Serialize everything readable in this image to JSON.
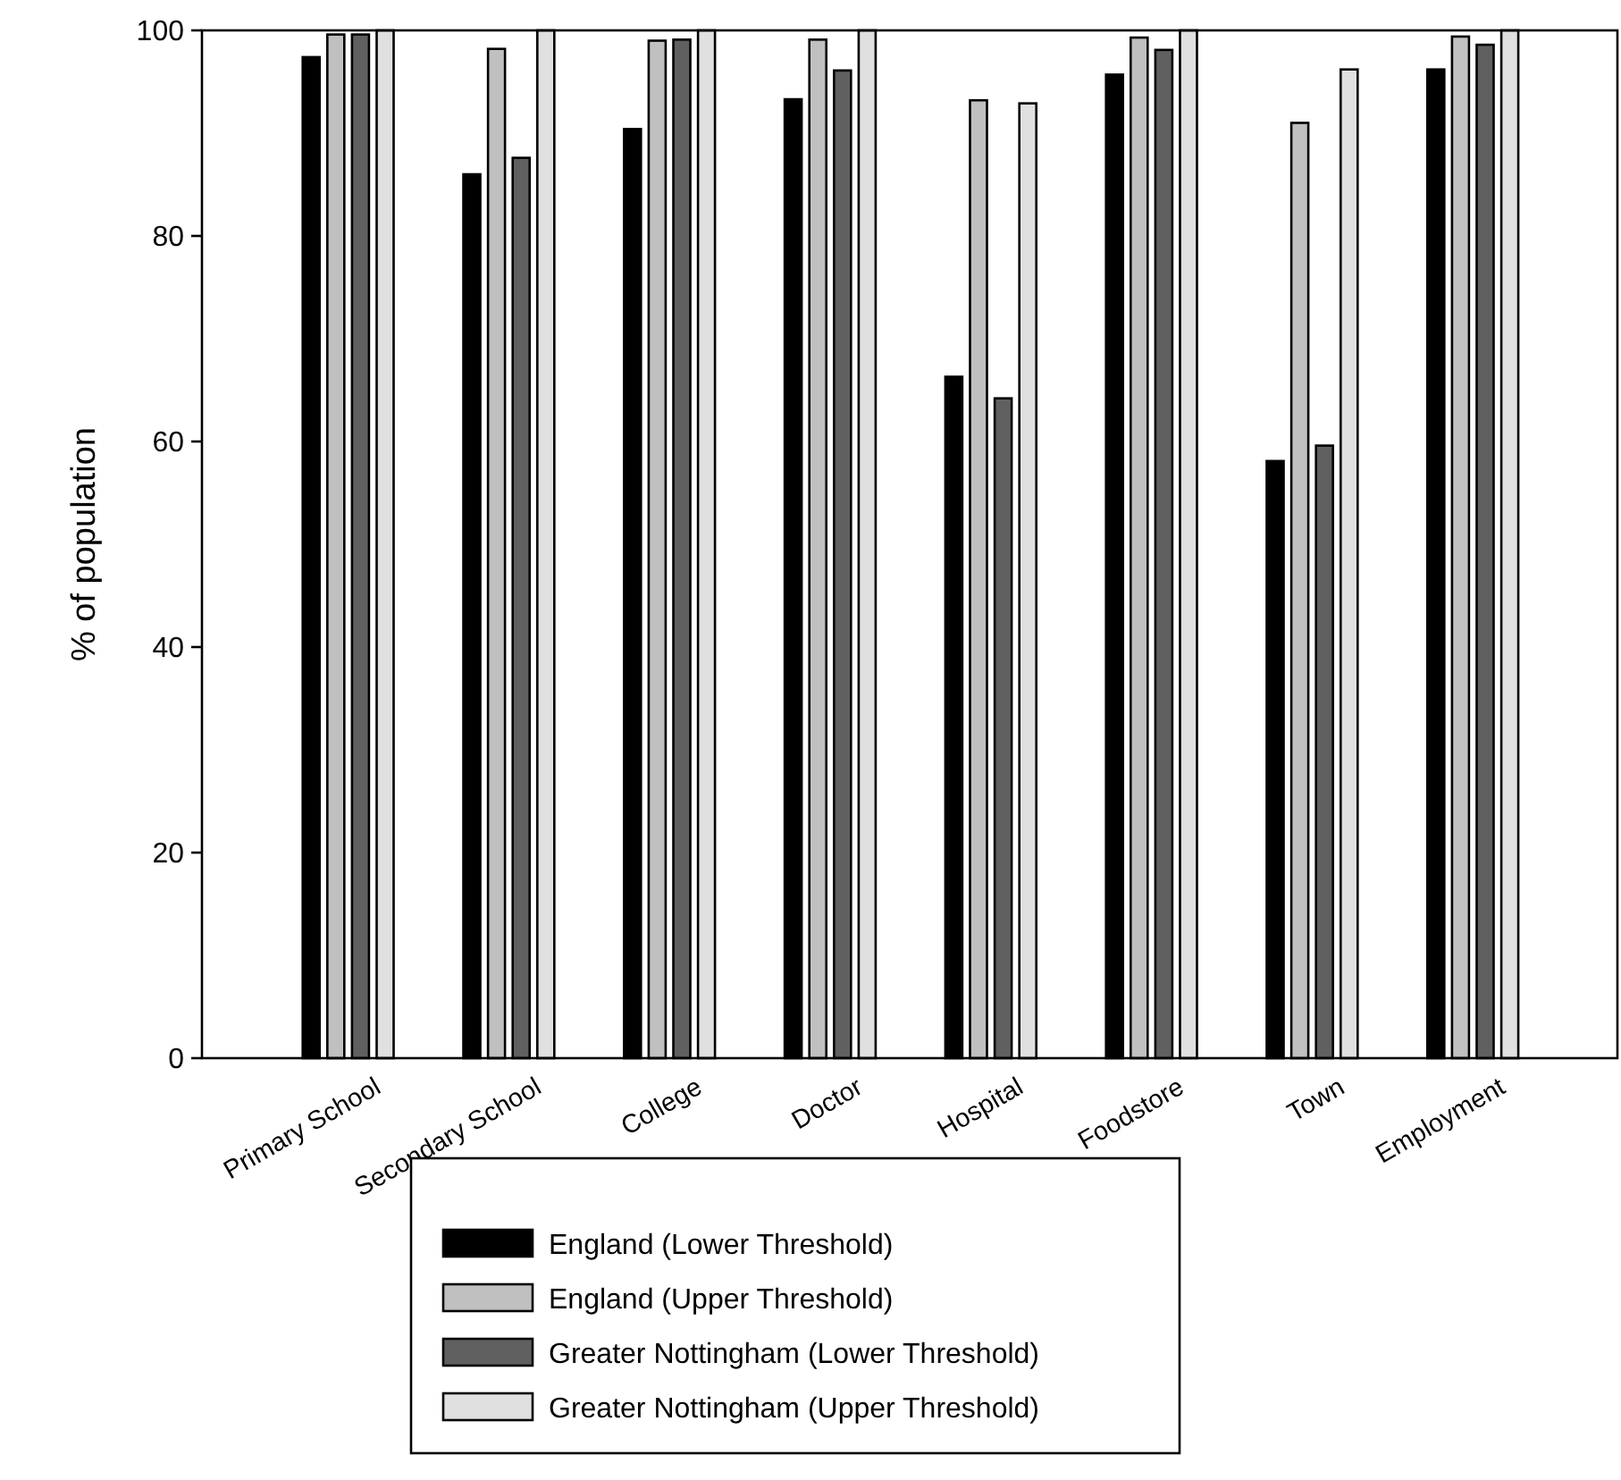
{
  "chart_data": {
    "type": "bar",
    "ylabel": "% of population",
    "categories": [
      "Primary School",
      "Secondary School",
      "College",
      "Doctor",
      "Hospital",
      "Foodstore",
      "Town",
      "Employment"
    ],
    "series": [
      {
        "name": "England (Lower Threshold)",
        "color": "#000000",
        "values": [
          97.4,
          86.0,
          90.4,
          93.3,
          66.3,
          95.7,
          58.1,
          96.2
        ]
      },
      {
        "name": "England (Upper Threshold)",
        "color": "#c0c0c0",
        "values": [
          99.6,
          98.2,
          99.0,
          99.1,
          93.2,
          99.3,
          91.0,
          99.4
        ]
      },
      {
        "name": "Greater Nottingham (Lower Threshold)",
        "color": "#606060",
        "values": [
          99.6,
          87.6,
          99.1,
          96.1,
          64.2,
          98.1,
          59.6,
          98.6
        ]
      },
      {
        "name": "Greater Nottingham (Upper Threshold)",
        "color": "#e0e0e0",
        "values": [
          100,
          100,
          100,
          100,
          92.9,
          100,
          96.2,
          100
        ]
      }
    ],
    "ylim": [
      0,
      100
    ],
    "yticks": [
      0,
      20,
      40,
      60,
      80,
      100
    ],
    "grid": false,
    "legend": "bottom"
  }
}
